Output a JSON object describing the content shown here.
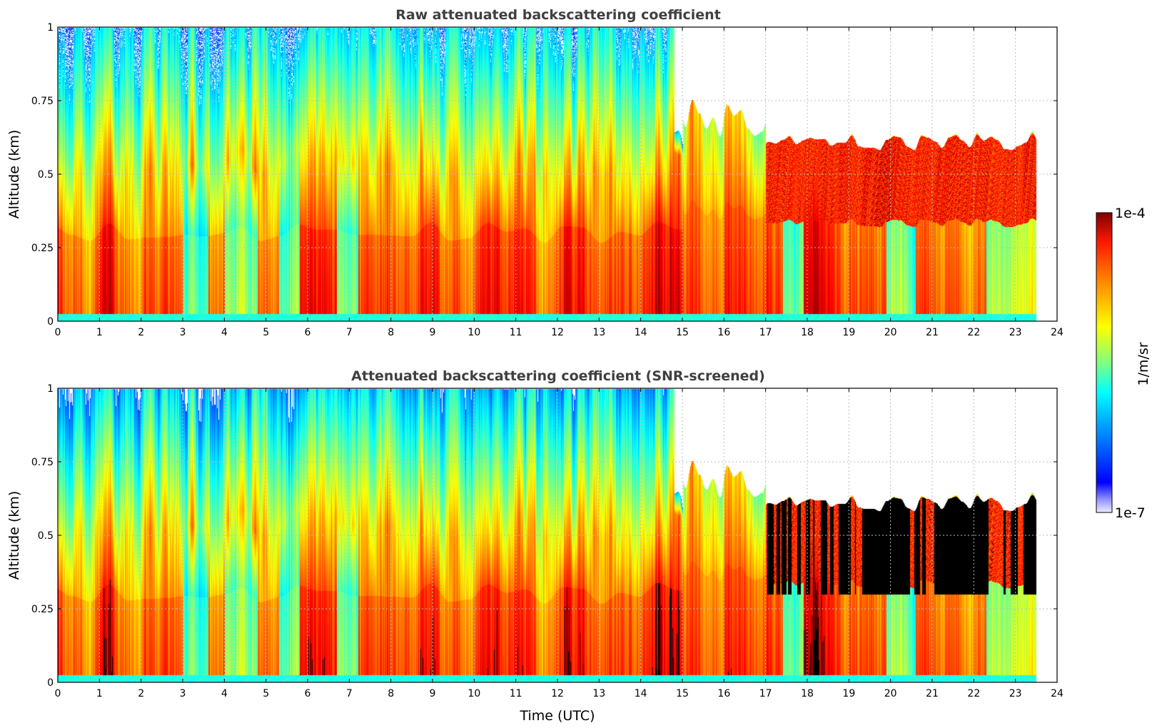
{
  "chart_data": [
    {
      "type": "heatmap",
      "id": "raw",
      "title": "Raw attenuated backscattering coefficient",
      "xlabel": "",
      "ylabel": "Altitude (km)",
      "xlim": [
        0,
        24
      ],
      "ylim": [
        0,
        1
      ],
      "xticks": [
        "0",
        "1",
        "2",
        "3",
        "4",
        "5",
        "6",
        "7",
        "8",
        "9",
        "10",
        "11",
        "12",
        "13",
        "14",
        "15",
        "16",
        "17",
        "18",
        "19",
        "20",
        "21",
        "22",
        "23",
        "24"
      ],
      "yticks": [
        "0",
        "0.25",
        "0.5",
        "0.75",
        "1"
      ],
      "grid": true,
      "data_end_hour": 23.5,
      "screened": false
    },
    {
      "type": "heatmap",
      "id": "screened",
      "title": "Attenuated backscattering coefficient (SNR-screened)",
      "xlabel": "Time (UTC)",
      "ylabel": "Altitude (km)",
      "xlim": [
        0,
        24
      ],
      "ylim": [
        0,
        1
      ],
      "xticks": [
        "0",
        "1",
        "2",
        "3",
        "4",
        "5",
        "6",
        "7",
        "8",
        "9",
        "10",
        "11",
        "12",
        "13",
        "14",
        "15",
        "16",
        "17",
        "18",
        "19",
        "20",
        "21",
        "22",
        "23",
        "24"
      ],
      "yticks": [
        "0",
        "0.25",
        "0.5",
        "0.75",
        "1"
      ],
      "grid": true,
      "data_end_hour": 23.5,
      "screened": true
    }
  ],
  "colorbar": {
    "label": "1/m/sr",
    "max_label": "1e-4",
    "min_label": "1e-7",
    "colormap": "jet",
    "scale": "log",
    "range": [
      1e-07,
      0.0001
    ]
  }
}
